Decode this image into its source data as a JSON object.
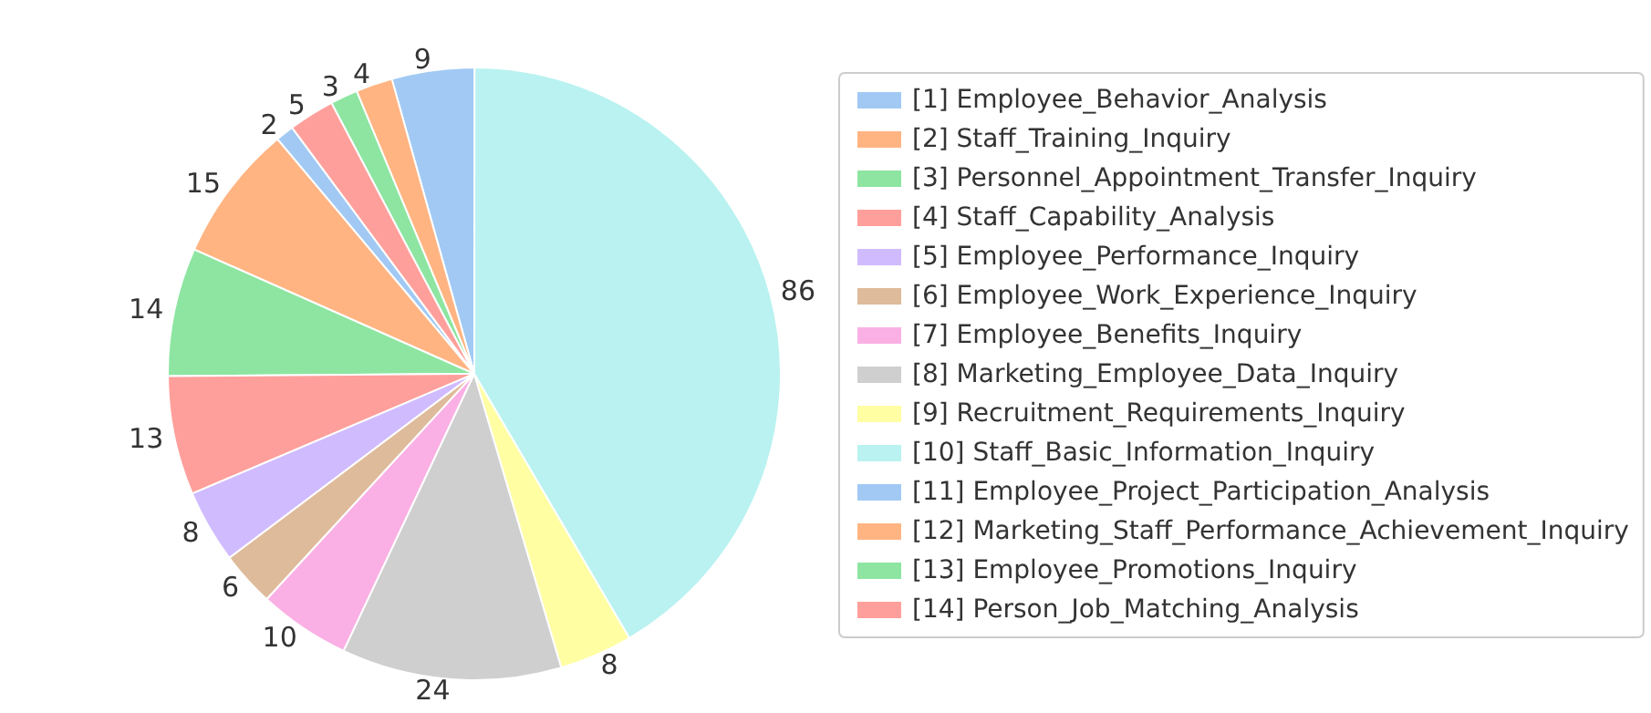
{
  "chart_data": {
    "type": "pie",
    "categories": [
      "[1] Employee_Behavior_Analysis",
      "[2] Staff_Training_Inquiry",
      "[3] Personnel_Appointment_Transfer_Inquiry",
      "[4] Staff_Capability_Analysis",
      "[5] Employee_Performance_Inquiry",
      "[6] Employee_Work_Experience_Inquiry",
      "[7] Employee_Benefits_Inquiry",
      "[8] Marketing_Employee_Data_Inquiry",
      "[9] Recruitment_Requirements_Inquiry",
      "[10] Staff_Basic_Information_Inquiry",
      "[11] Employee_Project_Participation_Analysis",
      "[12] Marketing_Staff_Performance_Achievement_Inquiry",
      "[13] Employee_Promotions_Inquiry",
      "[14] Person_Job_Matching_Analysis"
    ],
    "values": [
      2,
      15,
      14,
      13,
      8,
      6,
      10,
      24,
      8,
      86,
      9,
      4,
      3,
      5
    ],
    "colors": [
      "#a1c9f4",
      "#ffb482",
      "#8de5a1",
      "#ff9f9b",
      "#d0bbff",
      "#debb9b",
      "#fab0e4",
      "#cfcfcf",
      "#fffea3",
      "#b9f2f0",
      "#a1c9f4",
      "#ffb482",
      "#8de5a1",
      "#ff9f9b"
    ],
    "data_labels": true,
    "legend": "right"
  }
}
